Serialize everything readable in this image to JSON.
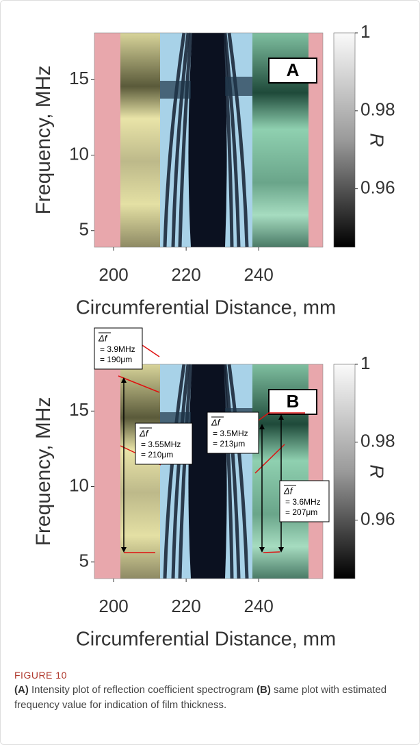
{
  "chart_data": [
    {
      "type": "heatmap",
      "panel_label": "A",
      "xlabel": "Circumferential Distance, mm",
      "ylabel": "Frequency, MHz",
      "xlim": [
        194.7,
        257.7
      ],
      "xticks": [
        200,
        220,
        240
      ],
      "ylim": [
        3.9,
        18.1
      ],
      "yticks": [
        5,
        10,
        15
      ],
      "colorbar": {
        "label": "R",
        "lim": [
          0.945,
          1.0
        ],
        "ticks": [
          0.96,
          0.98,
          1
        ]
      }
    },
    {
      "type": "heatmap",
      "panel_label": "B",
      "xlabel": "Circumferential Distance, mm",
      "ylabel": "Frequency, MHz",
      "xlim": [
        194.7,
        257.7
      ],
      "xticks": [
        200,
        220,
        240
      ],
      "ylim": [
        3.9,
        18.1
      ],
      "yticks": [
        5,
        10,
        15
      ],
      "colorbar": {
        "label": "R",
        "lim": [
          0.945,
          1.0
        ],
        "ticks": [
          0.96,
          0.98,
          1
        ]
      },
      "annotations": [
        {
          "symbol": "Δf",
          "lines": [
            "= 3.9MHz",
            "= 190μm"
          ]
        },
        {
          "symbol": "Δf",
          "lines": [
            "= 3.55MHz",
            "= 210μm"
          ]
        },
        {
          "symbol": "Δf",
          "lines": [
            "= 3.5MHz",
            "= 213μm"
          ]
        },
        {
          "symbol": "Δf",
          "lines": [
            "= 3.6MHz",
            "= 207μm"
          ]
        }
      ]
    }
  ],
  "caption": {
    "label": "FIGURE 10",
    "parts": [
      "(A)",
      " Intensity plot of reflection coefficient spectrogram ",
      "(B)",
      " same plot with estimated frequency value for indication of film thickness."
    ]
  }
}
